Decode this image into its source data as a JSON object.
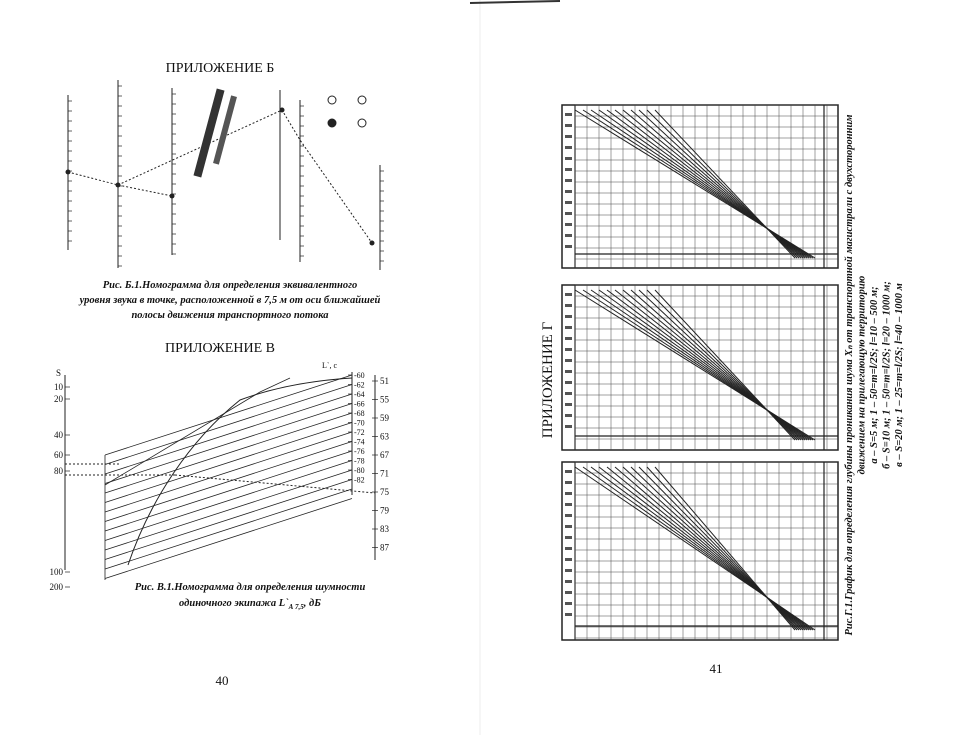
{
  "left_page": {
    "appendix_b": {
      "title": "ПРИЛОЖЕНИЕ Б",
      "caption": [
        "Рис. Б.1.Номограмма для определения эквивалентного",
        "уровня звука в точке, расположенной в 7,5 м от оси ближайшей",
        "полосы движения транспортного потока"
      ]
    },
    "appendix_v": {
      "title": "ПРИЛОЖЕНИЕ В",
      "s_label": "S",
      "s_ticks": [
        "10",
        "20",
        "40",
        "60",
        "80",
        "100",
        "200"
      ],
      "l_label": "L`, с",
      "inner_ticks": [
        "-60",
        "-62",
        "-64",
        "-66",
        "-68",
        "-70",
        "-72",
        "-74",
        "-76",
        "-78",
        "-80",
        "-82"
      ],
      "outer_ticks": [
        "51",
        "55",
        "59",
        "63",
        "67",
        "71",
        "75",
        "79",
        "83",
        "87"
      ],
      "caption_line1": "Рис. В.1.Номограмма для определения шумности",
      "caption_line2": "одиночного экипажа L`",
      "caption_sub": "А 7,5",
      "caption_tail": ", дБ"
    },
    "page_number": "40"
  },
  "right_page": {
    "title": "ПРИЛОЖЕНИЕ Г",
    "caption": [
      "Рис.Г.1.График для определения глубины проникания шума Xₙ от транспортной магистрали с двухсторонним",
      "движением на прилегающую территорию",
      "а – S=5 м; 1 – 50=m=l/2S; l=10 – 500 м;",
      "б – S=10 м; 1 – 50=m=l/2S; l=20 – 1000 м;",
      "в – S=20 м; 1 – 25=m=l/2S; l=40 – 1000 м"
    ],
    "page_number": "41"
  }
}
